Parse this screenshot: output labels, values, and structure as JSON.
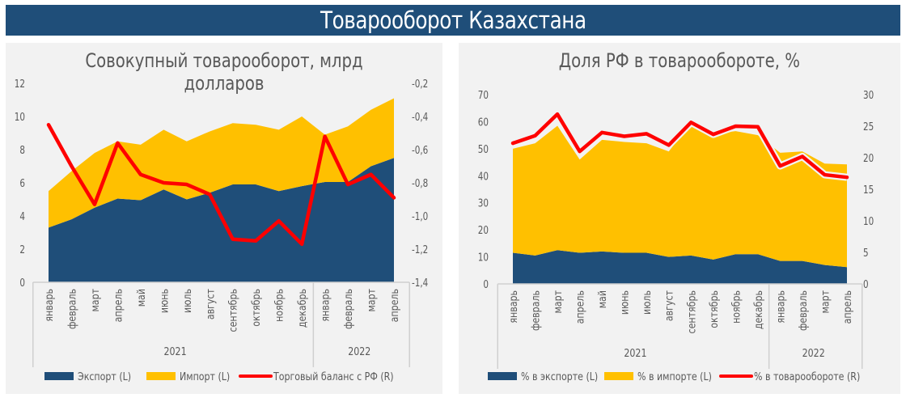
{
  "header": {
    "title": "Товарооборот Казахстана"
  },
  "colors": {
    "banner": "#1f4e79",
    "export": "#1f4e79",
    "import": "#ffc000",
    "line": "#ff0000",
    "panel": "#f2f2f2"
  },
  "chart_data": [
    {
      "type": "area",
      "stacked": true,
      "title": "Совокупный товарооборот, млрд долларов",
      "categories": [
        "январь",
        "февраль",
        "март",
        "апрель",
        "май",
        "июнь",
        "июль",
        "август",
        "сентябрь",
        "октябрь",
        "ноябрь",
        "декабрь",
        "январь",
        "февраль",
        "март",
        "апрель"
      ],
      "groups": [
        {
          "label": "2021",
          "count": 12
        },
        {
          "label": "2022",
          "count": 4
        }
      ],
      "y_left": {
        "range": [
          0,
          12
        ],
        "ticks": [
          "0",
          "2",
          "4",
          "6",
          "8",
          "10",
          "12"
        ]
      },
      "y_right": {
        "range": [
          -1.4,
          -0.2
        ],
        "ticks": [
          "-1,4",
          "-1,2",
          "-1,0",
          "-0,8",
          "-0,6",
          "-0,4",
          "-0,2"
        ]
      },
      "series": [
        {
          "name": "Экспорт (L)",
          "kind": "area",
          "axis": "left",
          "values": [
            3.3,
            3.8,
            4.5,
            5.05,
            4.95,
            5.6,
            5.0,
            5.4,
            5.9,
            5.9,
            5.5,
            5.8,
            6.05,
            6.05,
            7.0,
            7.5
          ]
        },
        {
          "name": "Импорт (L)",
          "kind": "area",
          "axis": "left",
          "values": [
            2.2,
            2.9,
            3.3,
            3.45,
            3.35,
            3.6,
            3.5,
            3.7,
            3.7,
            3.6,
            3.7,
            4.2,
            2.85,
            3.35,
            3.4,
            3.6
          ]
        },
        {
          "name": "Торговый баланс с РФ (R)",
          "kind": "line",
          "axis": "right",
          "values": [
            -0.45,
            -0.7,
            -0.93,
            -0.56,
            -0.75,
            -0.8,
            -0.81,
            -0.87,
            -1.14,
            -1.15,
            -1.03,
            -1.17,
            -0.52,
            -0.81,
            -0.75,
            -0.89
          ]
        }
      ],
      "legend": "bottom",
      "grid": false
    },
    {
      "type": "area",
      "stacked": true,
      "title": "Доля РФ в товарообороте, %",
      "categories": [
        "январь",
        "февраль",
        "март",
        "апрель",
        "май",
        "июнь",
        "июль",
        "август",
        "сентябрь",
        "октябрь",
        "ноябрь",
        "декабрь",
        "январь",
        "февраль",
        "март",
        "апрель"
      ],
      "groups": [
        {
          "label": "2021",
          "count": 12
        },
        {
          "label": "2022",
          "count": 4
        }
      ],
      "y_left": {
        "range": [
          0,
          70
        ],
        "ticks": [
          "0",
          "10",
          "20",
          "30",
          "40",
          "50",
          "60",
          "70"
        ]
      },
      "y_right": {
        "range": [
          0,
          30
        ],
        "ticks": [
          "0",
          "5",
          "10",
          "15",
          "20",
          "25",
          "30"
        ]
      },
      "series": [
        {
          "name": "% в экспорте (L)",
          "kind": "area",
          "axis": "left",
          "values": [
            11.5,
            10.5,
            12.5,
            11.5,
            12,
            11.5,
            11.5,
            10,
            10.5,
            9,
            11,
            11,
            8.5,
            8.5,
            7,
            6.2
          ]
        },
        {
          "name": "% в импорте (L)",
          "kind": "area",
          "axis": "left",
          "values": [
            38.5,
            41.5,
            46,
            34.5,
            41.3,
            41,
            40.5,
            39,
            49,
            46.5,
            45.5,
            44,
            40,
            40.5,
            37.5,
            38
          ]
        },
        {
          "name": "% в товарообороте (R)",
          "kind": "line",
          "axis": "right",
          "values": [
            22.3,
            23.5,
            26.9,
            21.0,
            24.0,
            23.4,
            23.8,
            22.0,
            25.6,
            23.7,
            25.0,
            24.9,
            18.7,
            20.2,
            17.3,
            16.9
          ]
        }
      ],
      "legend": "bottom",
      "grid": false
    }
  ]
}
